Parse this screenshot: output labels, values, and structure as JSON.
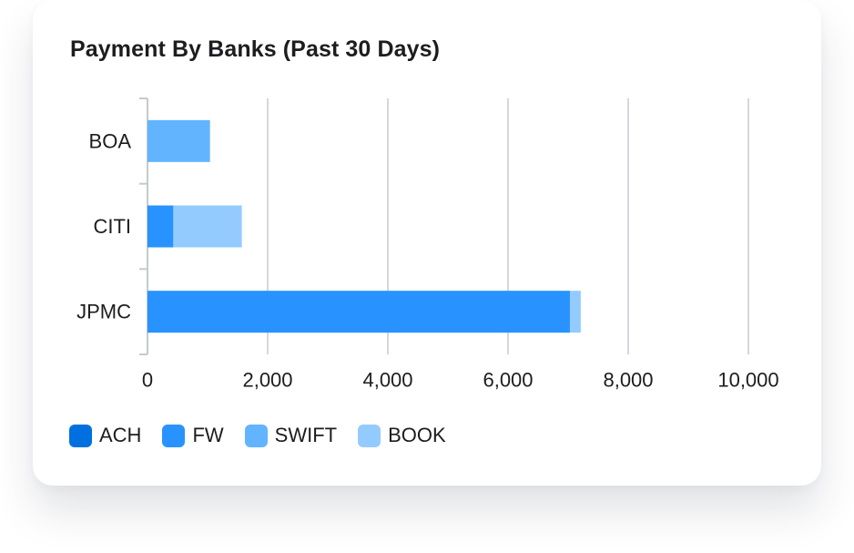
{
  "chart_data": {
    "type": "bar",
    "orientation": "horizontal",
    "stacked": true,
    "title": "Payment By Banks (Past 30 Days)",
    "categories": [
      "BOA",
      "CITI",
      "JPMC"
    ],
    "series": [
      {
        "name": "ACH",
        "color": "#0070e0",
        "values": [
          0,
          0,
          0
        ]
      },
      {
        "name": "FW",
        "color": "#2893ff",
        "values": [
          0,
          430,
          7030
        ]
      },
      {
        "name": "SWIFT",
        "color": "#62b4ff",
        "values": [
          1040,
          0,
          0
        ]
      },
      {
        "name": "BOOK",
        "color": "#94cbff",
        "values": [
          0,
          1140,
          180
        ]
      }
    ],
    "xlim": [
      0,
      10000
    ],
    "xticks": [
      0,
      2000,
      4000,
      6000,
      8000,
      10000
    ],
    "xtick_labels": [
      "0",
      "2,000",
      "4,000",
      "6,000",
      "8,000",
      "10,000"
    ],
    "xlabel": "",
    "ylabel": "",
    "grid": "vertical",
    "legend": "bottom-left"
  }
}
